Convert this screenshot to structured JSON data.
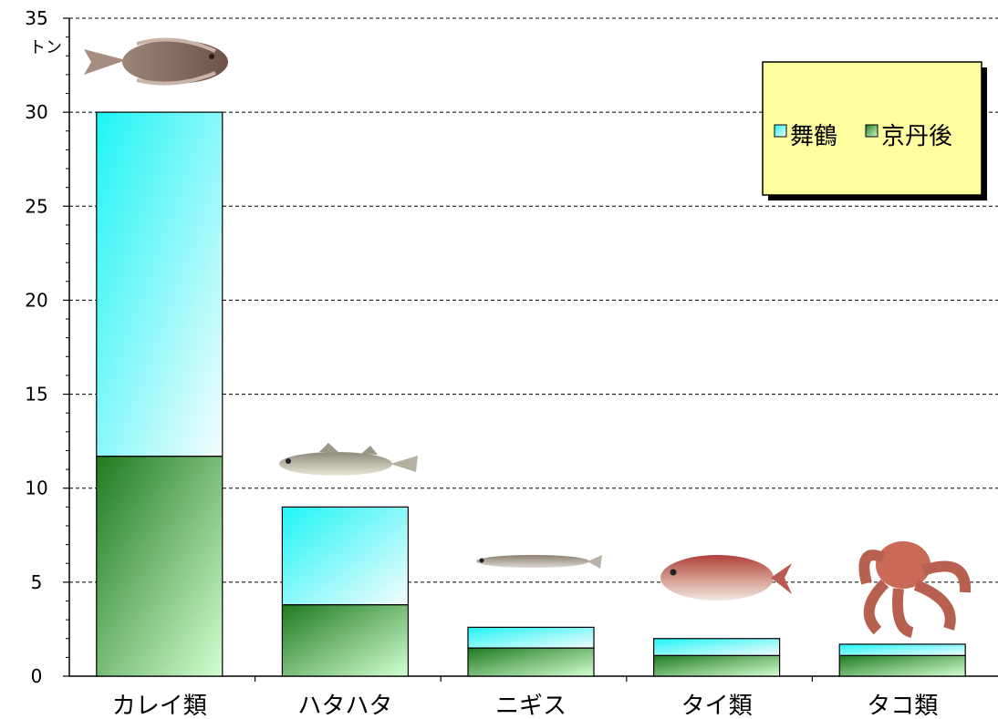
{
  "chart_data": {
    "type": "bar",
    "stacked": true,
    "categories": [
      "カレイ類",
      "ハタハタ",
      "ニギス",
      "タイ類",
      "タコ類"
    ],
    "series": [
      {
        "name": "京丹後",
        "values": [
          11.7,
          3.8,
          1.5,
          1.1,
          1.1
        ]
      },
      {
        "name": "舞鶴",
        "values": [
          18.3,
          5.2,
          1.1,
          0.9,
          0.6
        ]
      }
    ],
    "totals": [
      30.0,
      9.0,
      2.6,
      2.0,
      1.7
    ],
    "ylim": [
      0,
      35
    ],
    "y_ticks": [
      0,
      5,
      10,
      15,
      20,
      25,
      30,
      35
    ],
    "y_unit": "トン",
    "grid": true,
    "legend": {
      "placement": "top-right",
      "entries": [
        "舞鶴",
        "京丹後"
      ]
    },
    "images": [
      "flatfish",
      "sandfish",
      "argentine",
      "sea-bream",
      "octopus"
    ]
  },
  "colors": {
    "maizuru_top": "#1ff4f6",
    "maizuru_bottom": "#f4fcfc",
    "kyotango_top": "#1f7a1f",
    "kyotango_bottom": "#d2ffd2",
    "legend_bg": "#fefe9f",
    "legend_shadow": "#000000",
    "grid": "#000000"
  }
}
